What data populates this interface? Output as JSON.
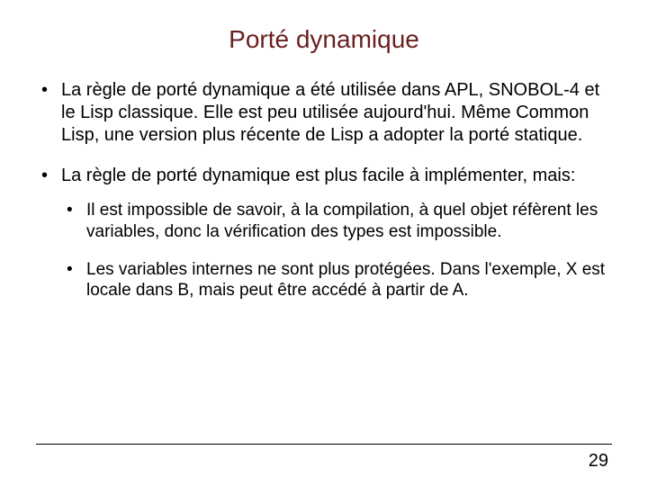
{
  "title": {
    "text": "Porté dynamique",
    "color": "#6b1f1f",
    "fontsize": 28
  },
  "bullets": [
    {
      "text": "La règle de porté dynamique a été utilisée dans APL, SNOBOL-4 et le Lisp classique. Elle est peu utilisée aujourd'hui. Même  Common Lisp, une version plus récente de Lisp a adopter la porté statique."
    },
    {
      "text": "La règle de porté dynamique est plus facile à implémenter, mais:",
      "sub": [
        {
          "text": "Il est impossible de savoir, à la compilation, à  quel objet réfèrent les variables, donc la vérification des types est impossible."
        },
        {
          "text": "Les variables internes ne sont plus protégées. Dans l'exemple, X est locale dans B, mais peut être accédé à partir de A."
        }
      ]
    }
  ],
  "page_number": "29",
  "colors": {
    "text": "#000000",
    "background": "#ffffff",
    "rule": "#000000"
  }
}
